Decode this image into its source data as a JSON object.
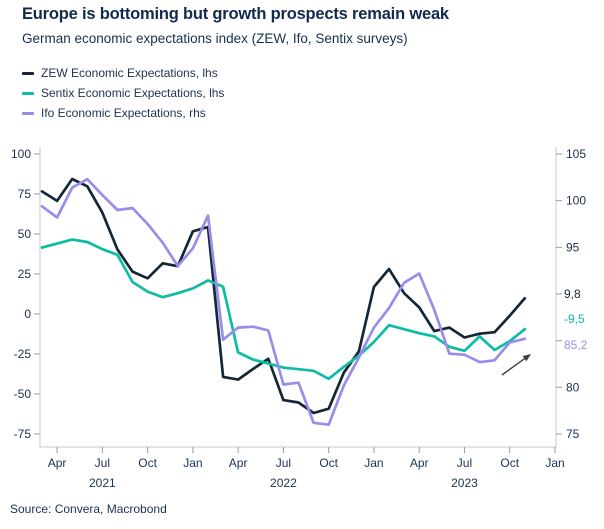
{
  "header": {
    "title": "Europe is bottoming but growth prospects remain weak",
    "subtitle": "German economic expectations index (ZEW, Ifo, Sentix surveys)"
  },
  "legend": {
    "items": [
      {
        "label": "ZEW Economic Expectations, lhs",
        "color": "#142638"
      },
      {
        "label": "Sentix Economic Expectations, lhs",
        "color": "#0cbca5"
      },
      {
        "label": "Ifo Economic Expectations, rhs",
        "color": "#9a8de9"
      }
    ]
  },
  "chart_data": {
    "type": "line",
    "title": "Europe is bottoming but growth prospects remain weak",
    "subtitle": "German economic expectations index (ZEW, Ifo, Sentix surveys)",
    "x_frequency": "monthly",
    "x_start": "2021-03",
    "x_end": "2023-11",
    "left_axis": {
      "min": -75,
      "max": 100,
      "ticks": [
        100,
        75,
        50,
        25,
        0,
        -25,
        -50,
        -75
      ]
    },
    "right_axis": {
      "min": 75,
      "max": 105,
      "tick_marks": [
        105,
        100,
        95,
        90,
        85,
        80,
        75
      ],
      "tick_labels": [
        105,
        100,
        95,
        80,
        75
      ]
    },
    "x_tick_labels": [
      {
        "label": "Apr",
        "month_index": 1
      },
      {
        "label": "Jul",
        "month_index": 4
      },
      {
        "label": "Oct",
        "month_index": 7
      },
      {
        "label": "Jan",
        "month_index": 10
      },
      {
        "label": "Apr",
        "month_index": 13
      },
      {
        "label": "Jul",
        "month_index": 16
      },
      {
        "label": "Oct",
        "month_index": 19
      },
      {
        "label": "Jan",
        "month_index": 22
      },
      {
        "label": "Apr",
        "month_index": 25
      },
      {
        "label": "Jul",
        "month_index": 28
      },
      {
        "label": "Oct",
        "month_index": 31
      },
      {
        "label": "Jan",
        "month_index": 34
      }
    ],
    "year_labels": [
      {
        "label": "2021",
        "month_index": 4
      },
      {
        "label": "2022",
        "month_index": 16
      },
      {
        "label": "2023",
        "month_index": 28
      }
    ],
    "series": [
      {
        "name": "ZEW Economic Expectations",
        "axis": "lhs",
        "color": "#142638",
        "values": [
          76.6,
          70.7,
          84.4,
          79.8,
          63.3,
          40.4,
          26.5,
          22.3,
          31.7,
          29.9,
          51.7,
          54.3,
          -39.3,
          -41.0,
          -34.3,
          -28.0,
          -53.8,
          -55.3,
          -61.9,
          -59.2,
          -36.7,
          -23.3,
          16.9,
          28.1,
          13.0,
          4.1,
          -10.7,
          -8.5,
          -14.7,
          -12.3,
          -11.4,
          -1.1,
          9.8
        ]
      },
      {
        "name": "Sentix Economic Expectations",
        "axis": "lhs",
        "color": "#0cbca5",
        "values": [
          41.5,
          44.0,
          46.5,
          45.0,
          40.5,
          37.0,
          20.0,
          14.0,
          10.5,
          13.0,
          16.0,
          21.0,
          17.0,
          -24.0,
          -28.5,
          -31.0,
          -33.5,
          -34.5,
          -35.5,
          -40.5,
          -33.0,
          -26.0,
          -17.5,
          -7.0,
          -9.5,
          -12.0,
          -14.0,
          -20.5,
          -23.0,
          -14.0,
          -22.5,
          -17.0,
          -9.5
        ]
      },
      {
        "name": "Ifo Economic Expectations",
        "axis": "rhs",
        "color": "#9a8de9",
        "values": [
          99.4,
          98.2,
          101.4,
          102.3,
          100.6,
          99.0,
          99.2,
          97.5,
          95.5,
          93.0,
          94.9,
          98.4,
          85.1,
          86.4,
          86.5,
          86.1,
          80.3,
          80.5,
          76.2,
          76.0,
          80.2,
          83.2,
          86.4,
          88.5,
          91.2,
          92.2,
          88.3,
          83.6,
          83.5,
          82.7,
          82.9,
          84.8,
          85.2
        ]
      }
    ],
    "end_value_labels": [
      {
        "text": "9,8",
        "color": "#142638",
        "series": "ZEW Economic Expectations"
      },
      {
        "text": "-9,5",
        "color": "#0cbca5",
        "series": "Sentix Economic Expectations"
      },
      {
        "text": "85,2",
        "color": "#9a8de9",
        "series": "Ifo Economic Expectations"
      }
    ],
    "annotation": {
      "type": "arrow",
      "direction": "up-right"
    }
  },
  "source": {
    "text": "Source: Convera, Macrobond"
  },
  "colors": {
    "title": "#122a4e",
    "text": "#1c3150",
    "axis_line": "#c9c9c9",
    "tick": "#9a9a9a",
    "arrow": "#3d3d3d",
    "background": "#ffffff"
  }
}
